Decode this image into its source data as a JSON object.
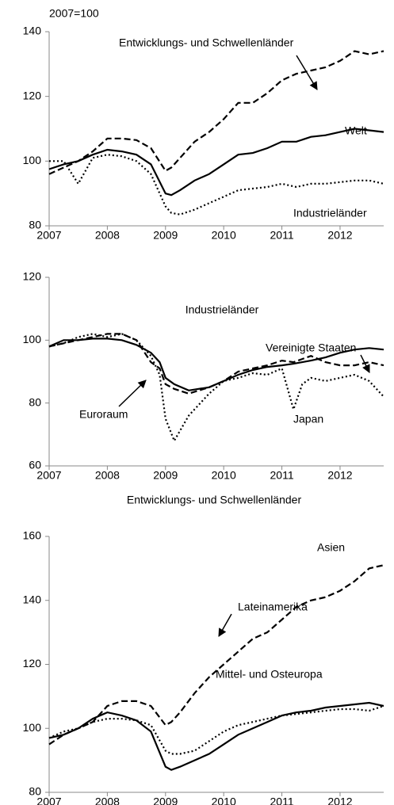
{
  "chart_data": [
    {
      "type": "line",
      "ylabel": "2007=100",
      "x": [
        2007,
        2007.25,
        2007.5,
        2007.75,
        2008,
        2008.25,
        2008.5,
        2008.75,
        2009,
        2009.1,
        2009.25,
        2009.5,
        2009.75,
        2010,
        2010.25,
        2010.5,
        2010.75,
        2011,
        2011.25,
        2011.5,
        2011.75,
        2012,
        2012.25,
        2012.5,
        2012.75
      ],
      "xlim": [
        2007,
        2012.75
      ],
      "xticks": [
        2007,
        2008,
        2009,
        2010,
        2011,
        2012
      ],
      "ylim": [
        80,
        140
      ],
      "yticks": [
        80,
        100,
        120,
        140
      ],
      "series": [
        {
          "name": "Entwicklungs- und Schwellenländer",
          "color": "#000000",
          "style": "dashed",
          "values": [
            96,
            98,
            100,
            103,
            107,
            107,
            106.5,
            104,
            97,
            98,
            101,
            106,
            109,
            113,
            118,
            118,
            121,
            125,
            127,
            128,
            129,
            131,
            134,
            133,
            134
          ]
        },
        {
          "name": "Welt",
          "color": "#000000",
          "style": "solid",
          "values": [
            97.5,
            99,
            100,
            102,
            103.5,
            103,
            102,
            99,
            90,
            89.5,
            91,
            94,
            96,
            99,
            102,
            102.5,
            104,
            106,
            106,
            107.5,
            108,
            109,
            110,
            109.5,
            109
          ]
        },
        {
          "name": "Industrieländer",
          "color": "#000000",
          "style": "dotted",
          "values": [
            100,
            100,
            93,
            101,
            102,
            101.5,
            100,
            96,
            86,
            84,
            83.5,
            85,
            87,
            89,
            91,
            91.5,
            92,
            93,
            92,
            93,
            93,
            93.5,
            94,
            94,
            93
          ]
        }
      ]
    },
    {
      "type": "line",
      "title": "Industrieländer",
      "x": [
        2007,
        2007.25,
        2007.5,
        2007.75,
        2008,
        2008.25,
        2008.5,
        2008.75,
        2008.9,
        2009,
        2009.15,
        2009.4,
        2009.75,
        2010,
        2010.25,
        2010.5,
        2010.75,
        2011,
        2011.2,
        2011.35,
        2011.5,
        2011.75,
        2012,
        2012.25,
        2012.5,
        2012.75
      ],
      "xlim": [
        2007,
        2012.75
      ],
      "xticks": [
        2007,
        2008,
        2009,
        2010,
        2011,
        2012
      ],
      "ylim": [
        60,
        120
      ],
      "yticks": [
        60,
        80,
        100,
        120
      ],
      "series": [
        {
          "name": "Vereinigte Staaten",
          "color": "#000000",
          "style": "solid",
          "values": [
            98,
            100,
            100,
            100.5,
            100.5,
            100,
            98.5,
            96,
            93,
            88,
            86,
            84,
            85,
            87,
            89,
            90.5,
            91.5,
            92,
            92.5,
            93,
            93.5,
            94.5,
            96,
            97,
            97.5,
            97
          ]
        },
        {
          "name": "Euroraum",
          "color": "#000000",
          "style": "dashed",
          "values": [
            98,
            99,
            100,
            101,
            102,
            102,
            100,
            93,
            91,
            86,
            84.5,
            83,
            85,
            87,
            90,
            91,
            92,
            93.5,
            93,
            94,
            95,
            93,
            92,
            92,
            93,
            92
          ]
        },
        {
          "name": "Japan",
          "color": "#000000",
          "style": "dotted",
          "values": [
            98,
            99,
            101,
            102,
            101,
            102,
            100,
            95,
            89,
            75,
            68,
            76,
            83,
            87,
            88,
            89.5,
            89,
            91,
            78,
            86,
            88,
            87,
            88,
            89,
            87,
            82
          ]
        }
      ]
    },
    {
      "type": "line",
      "title": "Entwicklungs- und Schwellenländer",
      "x": [
        2007,
        2007.25,
        2007.5,
        2007.75,
        2008,
        2008.25,
        2008.5,
        2008.75,
        2009,
        2009.1,
        2009.25,
        2009.5,
        2009.75,
        2010,
        2010.25,
        2010.5,
        2010.75,
        2011,
        2011.25,
        2011.5,
        2011.75,
        2012,
        2012.25,
        2012.5,
        2012.75
      ],
      "xlim": [
        2007,
        2012.75
      ],
      "xticks": [
        2007,
        2008,
        2009,
        2010,
        2011,
        2012
      ],
      "ylim": [
        80,
        160
      ],
      "yticks": [
        80,
        100,
        120,
        140,
        160
      ],
      "series": [
        {
          "name": "Asien",
          "color": "#000000",
          "style": "dashed",
          "values": [
            95,
            98,
            100,
            102,
            107,
            108.5,
            108.5,
            107,
            101,
            102,
            105,
            111,
            116,
            120,
            124,
            128,
            130,
            134,
            138,
            140,
            141,
            143,
            146,
            150,
            151
          ]
        },
        {
          "name": "Lateinamerika",
          "color": "#000000",
          "style": "dotted",
          "values": [
            97,
            99,
            100,
            102,
            103,
            103,
            102.5,
            101,
            93,
            92,
            92,
            93,
            96,
            99,
            101,
            102,
            103,
            104,
            104.5,
            105,
            105.5,
            106,
            106,
            105.5,
            107
          ]
        },
        {
          "name": "Mittel- und Osteuropa",
          "color": "#000000",
          "style": "solid",
          "values": [
            97,
            98,
            100,
            103,
            105,
            104,
            102.5,
            99,
            88,
            87,
            88,
            90,
            92,
            95,
            98,
            100,
            102,
            104,
            105,
            105.5,
            106.5,
            107,
            107.5,
            108,
            107
          ]
        }
      ]
    }
  ]
}
